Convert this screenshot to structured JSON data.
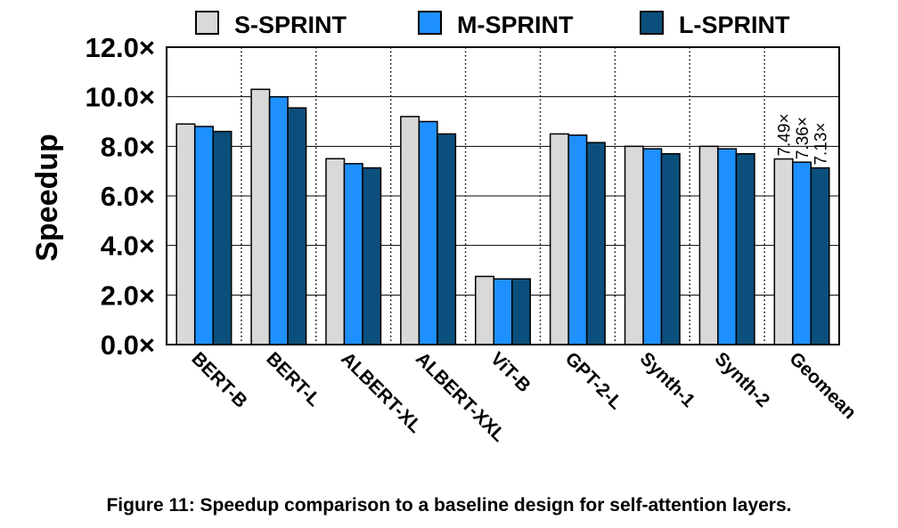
{
  "chart_data": {
    "type": "bar",
    "ylabel": "Speedup",
    "ylim": [
      0,
      12
    ],
    "yticks": [
      "0.0×",
      "2.0×",
      "4.0×",
      "6.0×",
      "8.0×",
      "10.0×",
      "12.0×"
    ],
    "ytick_values": [
      0,
      2,
      4,
      6,
      8,
      10,
      12
    ],
    "grid": true,
    "legend_position": "top",
    "categories": [
      "BERT-B",
      "BERT-L",
      "ALBERT-XL",
      "ALBERT-XXL",
      "ViT-B",
      "GPT-2-L",
      "Synth-1",
      "Synth-2",
      "Geomean"
    ],
    "series": [
      {
        "name": "S-SPRINT",
        "color": "#d9d9d9",
        "values": [
          8.9,
          10.3,
          7.5,
          9.2,
          2.75,
          8.5,
          8.0,
          8.0,
          7.49
        ]
      },
      {
        "name": "M-SPRINT",
        "color": "#1e90ff",
        "values": [
          8.8,
          10.0,
          7.3,
          9.0,
          2.65,
          8.45,
          7.9,
          7.9,
          7.36
        ]
      },
      {
        "name": "L-SPRINT",
        "color": "#0b4f7c",
        "values": [
          8.6,
          9.55,
          7.13,
          8.5,
          2.65,
          8.15,
          7.7,
          7.7,
          7.13
        ]
      }
    ],
    "annotations": [
      "7.49×",
      "7.36×",
      "7.13×"
    ]
  },
  "caption": "Figure 11: Speedup comparison to a baseline design for self-attention layers."
}
